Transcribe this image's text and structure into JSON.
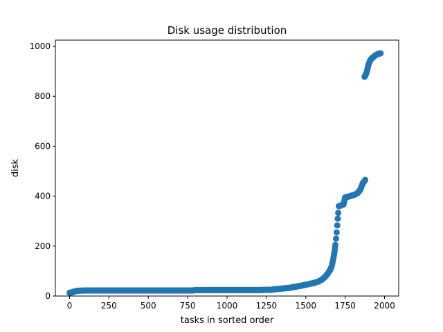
{
  "chart_data": {
    "type": "scatter",
    "title": "Disk usage distribution",
    "xlabel": "tasks in sorted order",
    "ylabel": "disk",
    "xlim": [
      -90,
      2090
    ],
    "ylim": [
      0,
      1025
    ],
    "xticks": [
      0,
      250,
      500,
      750,
      1000,
      1250,
      1500,
      1750,
      2000
    ],
    "yticks": [
      0,
      200,
      400,
      600,
      800,
      1000
    ],
    "grid": false,
    "legend": "none",
    "marker_color": "#1f77b4",
    "series": [
      {
        "points": [
          [
            0,
            13
          ],
          [
            8,
            14
          ],
          [
            15,
            15
          ],
          [
            22,
            16
          ],
          [
            30,
            18
          ],
          [
            40,
            20
          ],
          [
            50,
            21
          ],
          [
            100,
            22
          ],
          [
            200,
            22
          ],
          [
            300,
            22
          ],
          [
            400,
            22
          ],
          [
            500,
            22
          ],
          [
            600,
            22
          ],
          [
            700,
            22
          ],
          [
            780,
            22
          ],
          [
            800,
            24
          ],
          [
            900,
            24
          ],
          [
            1000,
            24
          ],
          [
            1100,
            24
          ],
          [
            1200,
            24
          ],
          [
            1280,
            25
          ],
          [
            1300,
            27
          ],
          [
            1350,
            30
          ],
          [
            1400,
            33
          ],
          [
            1430,
            37
          ],
          [
            1460,
            40
          ],
          [
            1490,
            44
          ],
          [
            1520,
            48
          ],
          [
            1550,
            52
          ],
          [
            1580,
            58
          ],
          [
            1600,
            65
          ],
          [
            1620,
            75
          ],
          [
            1640,
            90
          ],
          [
            1655,
            105
          ],
          [
            1665,
            120
          ],
          [
            1672,
            140
          ],
          [
            1678,
            160
          ],
          [
            1683,
            180
          ],
          [
            1688,
            205
          ],
          [
            1692,
            230
          ],
          [
            1696,
            255
          ],
          [
            1700,
            283
          ],
          [
            1703,
            310
          ],
          [
            1706,
            333
          ],
          [
            1710,
            360
          ],
          [
            1720,
            362
          ],
          [
            1730,
            365
          ],
          [
            1740,
            367
          ],
          [
            1750,
            395
          ],
          [
            1770,
            398
          ],
          [
            1790,
            402
          ],
          [
            1810,
            406
          ],
          [
            1830,
            413
          ],
          [
            1845,
            425
          ],
          [
            1855,
            440
          ],
          [
            1862,
            452
          ],
          [
            1870,
            458
          ],
          [
            1877,
            465
          ],
          [
            1873,
            878
          ],
          [
            1880,
            885
          ],
          [
            1886,
            895
          ],
          [
            1892,
            910
          ],
          [
            1897,
            925
          ],
          [
            1903,
            935
          ],
          [
            1910,
            945
          ],
          [
            1920,
            952
          ],
          [
            1930,
            958
          ],
          [
            1940,
            963
          ],
          [
            1950,
            967
          ],
          [
            1960,
            970
          ],
          [
            1975,
            972
          ]
        ]
      }
    ]
  }
}
